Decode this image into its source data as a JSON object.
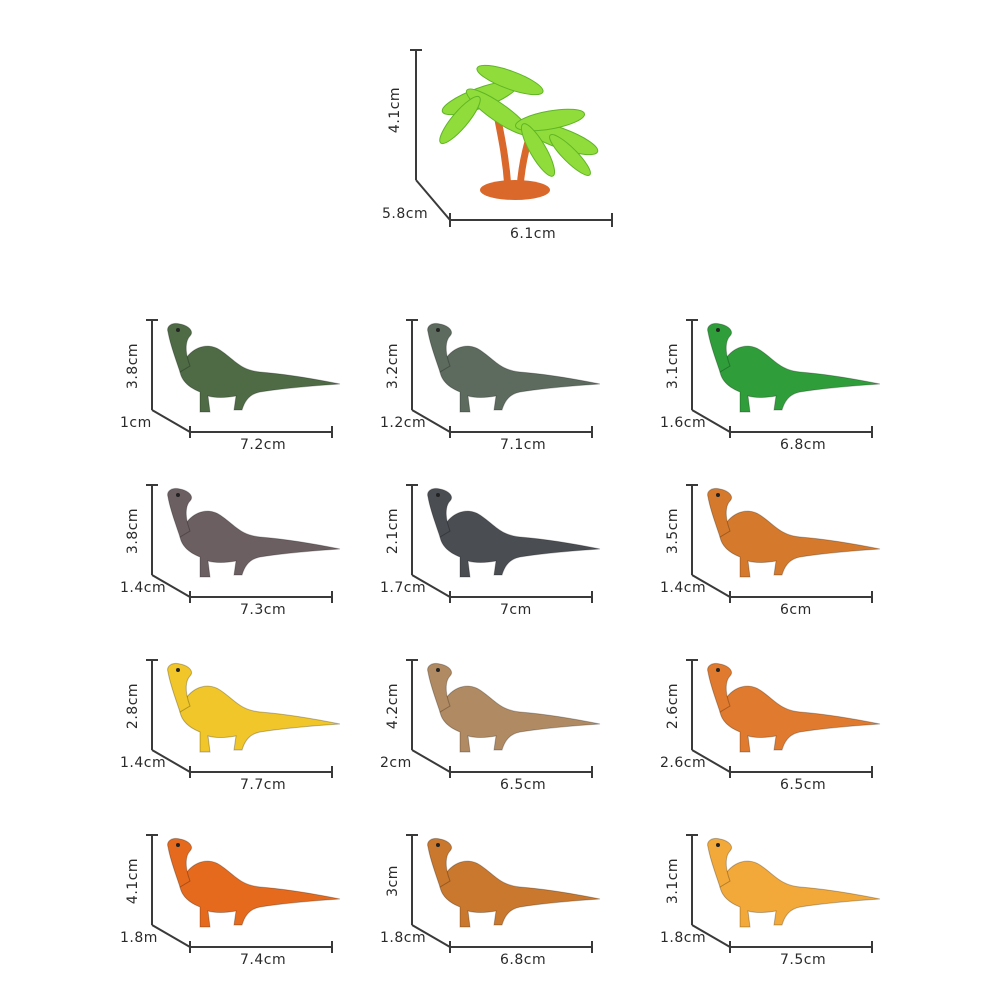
{
  "tree": {
    "height": "4.1cm",
    "depth": "5.8cm",
    "width": "6.1cm"
  },
  "toys": [
    {
      "height": "3.8cm",
      "depth": "1cm",
      "width": "7.2cm",
      "color": "#4e6b45"
    },
    {
      "height": "3.2cm",
      "depth": "1.2cm",
      "width": "7.1cm",
      "color": "#5d6a5e"
    },
    {
      "height": "3.1cm",
      "depth": "1.6cm",
      "width": "6.8cm",
      "color": "#2f9e3a"
    },
    {
      "height": "3.8cm",
      "depth": "1.4cm",
      "width": "7.3cm",
      "color": "#6c5f62"
    },
    {
      "height": "2.1cm",
      "depth": "1.7cm",
      "width": "7cm",
      "color": "#4a4d52"
    },
    {
      "height": "3.5cm",
      "depth": "1.4cm",
      "width": "6cm",
      "color": "#d57a2c"
    },
    {
      "height": "2.8cm",
      "depth": "1.4cm",
      "width": "7.7cm",
      "color": "#f0c62a"
    },
    {
      "height": "4.2cm",
      "depth": "2cm",
      "width": "6.5cm",
      "color": "#b08a62"
    },
    {
      "height": "2.6cm",
      "depth": "2.6cm",
      "width": "6.5cm",
      "color": "#e07a2e"
    },
    {
      "height": "4.1cm",
      "depth": "1.8m",
      "width": "7.4cm",
      "color": "#e56a1e"
    },
    {
      "height": "3cm",
      "depth": "1.8cm",
      "width": "6.8cm",
      "color": "#c9782e"
    },
    {
      "height": "3.1cm",
      "depth": "1.8cm",
      "width": "7.5cm",
      "color": "#f2a93a"
    }
  ]
}
